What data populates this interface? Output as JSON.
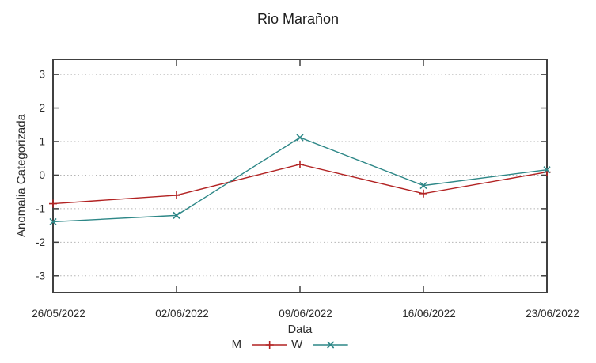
{
  "chart_data": {
    "type": "line",
    "title": "Rio Marañon",
    "xlabel": "Data",
    "ylabel": "Anomalia Categorizada",
    "x": [
      "26/05/2022",
      "02/06/2022",
      "09/06/2022",
      "16/06/2022",
      "23/06/2022"
    ],
    "y_ticks": [
      -3,
      -2,
      -1,
      0,
      1,
      2,
      3
    ],
    "ylim": [
      -3.5,
      3.45
    ],
    "grid": "horizontal-dotted",
    "legend_position": "bottom-center",
    "series": [
      {
        "name": "M",
        "color": "#b22222",
        "marker": "plus",
        "values": [
          -0.85,
          -0.6,
          0.32,
          -0.55,
          0.09
        ]
      },
      {
        "name": "W",
        "color": "#2d8787",
        "marker": "cross",
        "values": [
          -1.39,
          -1.2,
          1.12,
          -0.31,
          0.16
        ]
      }
    ],
    "colors": {
      "axis": "#404040",
      "grid": "#b5b5b5",
      "text": "#2b2b2b"
    }
  }
}
